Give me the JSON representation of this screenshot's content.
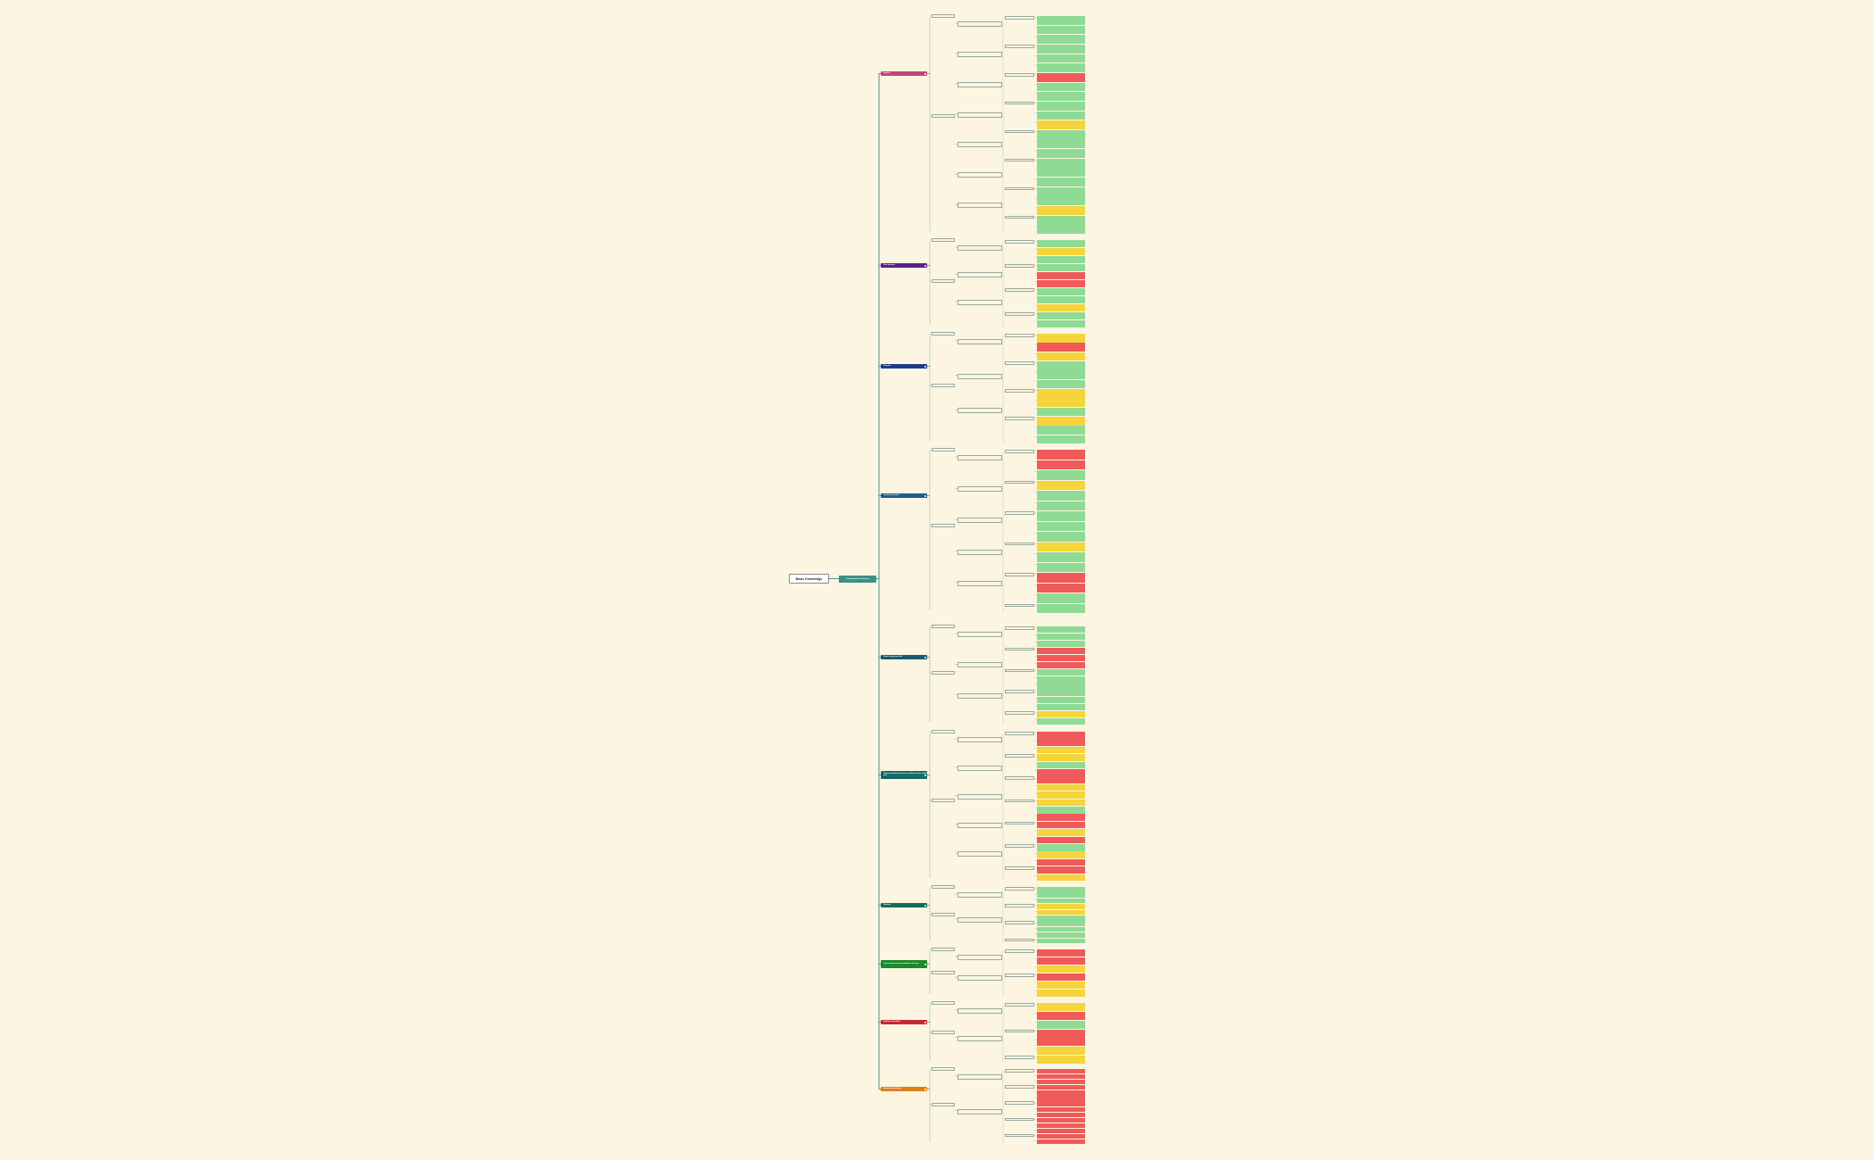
{
  "root": {
    "label": "Basic Knowledge"
  },
  "hub": {
    "label": "Fundamentals Overview"
  },
  "colors": {
    "background": "#fbf5e1",
    "connector": "#1d7d78",
    "green": "#8fdb96",
    "yellow": "#f5d43c",
    "red": "#f05a5a"
  },
  "sections": [
    {
      "label": "Cognition",
      "color": "#c24477"
    },
    {
      "label": "Basic operations",
      "color": "#5a1f8a"
    },
    {
      "label": "Perception",
      "color": "#1f3c8a"
    },
    {
      "label": "Learning and retention",
      "color": "#1f5c8a"
    },
    {
      "label": "Deeper reasoning and skills",
      "color": "#1a5a70"
    },
    {
      "label": "Planning, scheduling and resource coordination across multiple tasks",
      "color": "#176868"
    },
    {
      "label": "Monitoring",
      "color": "#146b5a"
    },
    {
      "label": "Communicating clearly with stakeholders and teams",
      "color": "#1a8a2a"
    },
    {
      "label": "Evaluation and feedback",
      "color": "#c42a35"
    },
    {
      "label": "Improvement and iteration",
      "color": "#e0801a"
    }
  ]
}
